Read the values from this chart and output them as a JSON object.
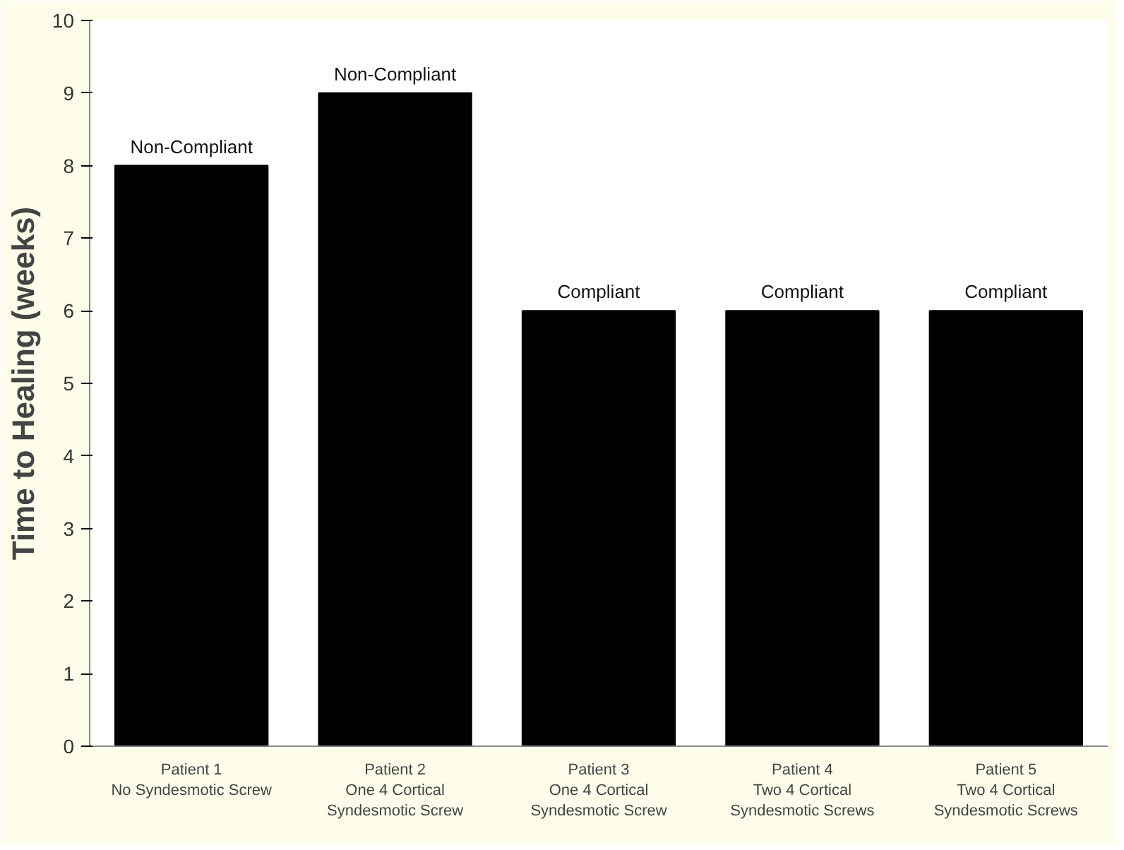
{
  "chart_data": {
    "type": "bar",
    "ylabel": "Time to Healing (weeks)",
    "categories": [
      "Patient 1\nNo Syndesmotic Screw",
      "Patient 2\nOne 4 Cortical\nSyndesmotic Screw",
      "Patient 3\nOne 4 Cortical\nSyndesmotic Screw",
      "Patient 4\nTwo 4 Cortical\nSyndesmotic Screws",
      "Patient 5\nTwo 4 Cortical\nSyndesmotic Screws"
    ],
    "values": [
      8,
      9,
      6,
      6,
      6
    ],
    "value_labels": [
      "Non-Compliant",
      "Non-Compliant",
      "Compliant",
      "Compliant",
      "Compliant"
    ],
    "color": "#000000",
    "ylim": [
      0,
      10
    ],
    "yticks": [
      0,
      1,
      2,
      3,
      4,
      5,
      6,
      7,
      8,
      9,
      10
    ],
    "grid": false
  }
}
